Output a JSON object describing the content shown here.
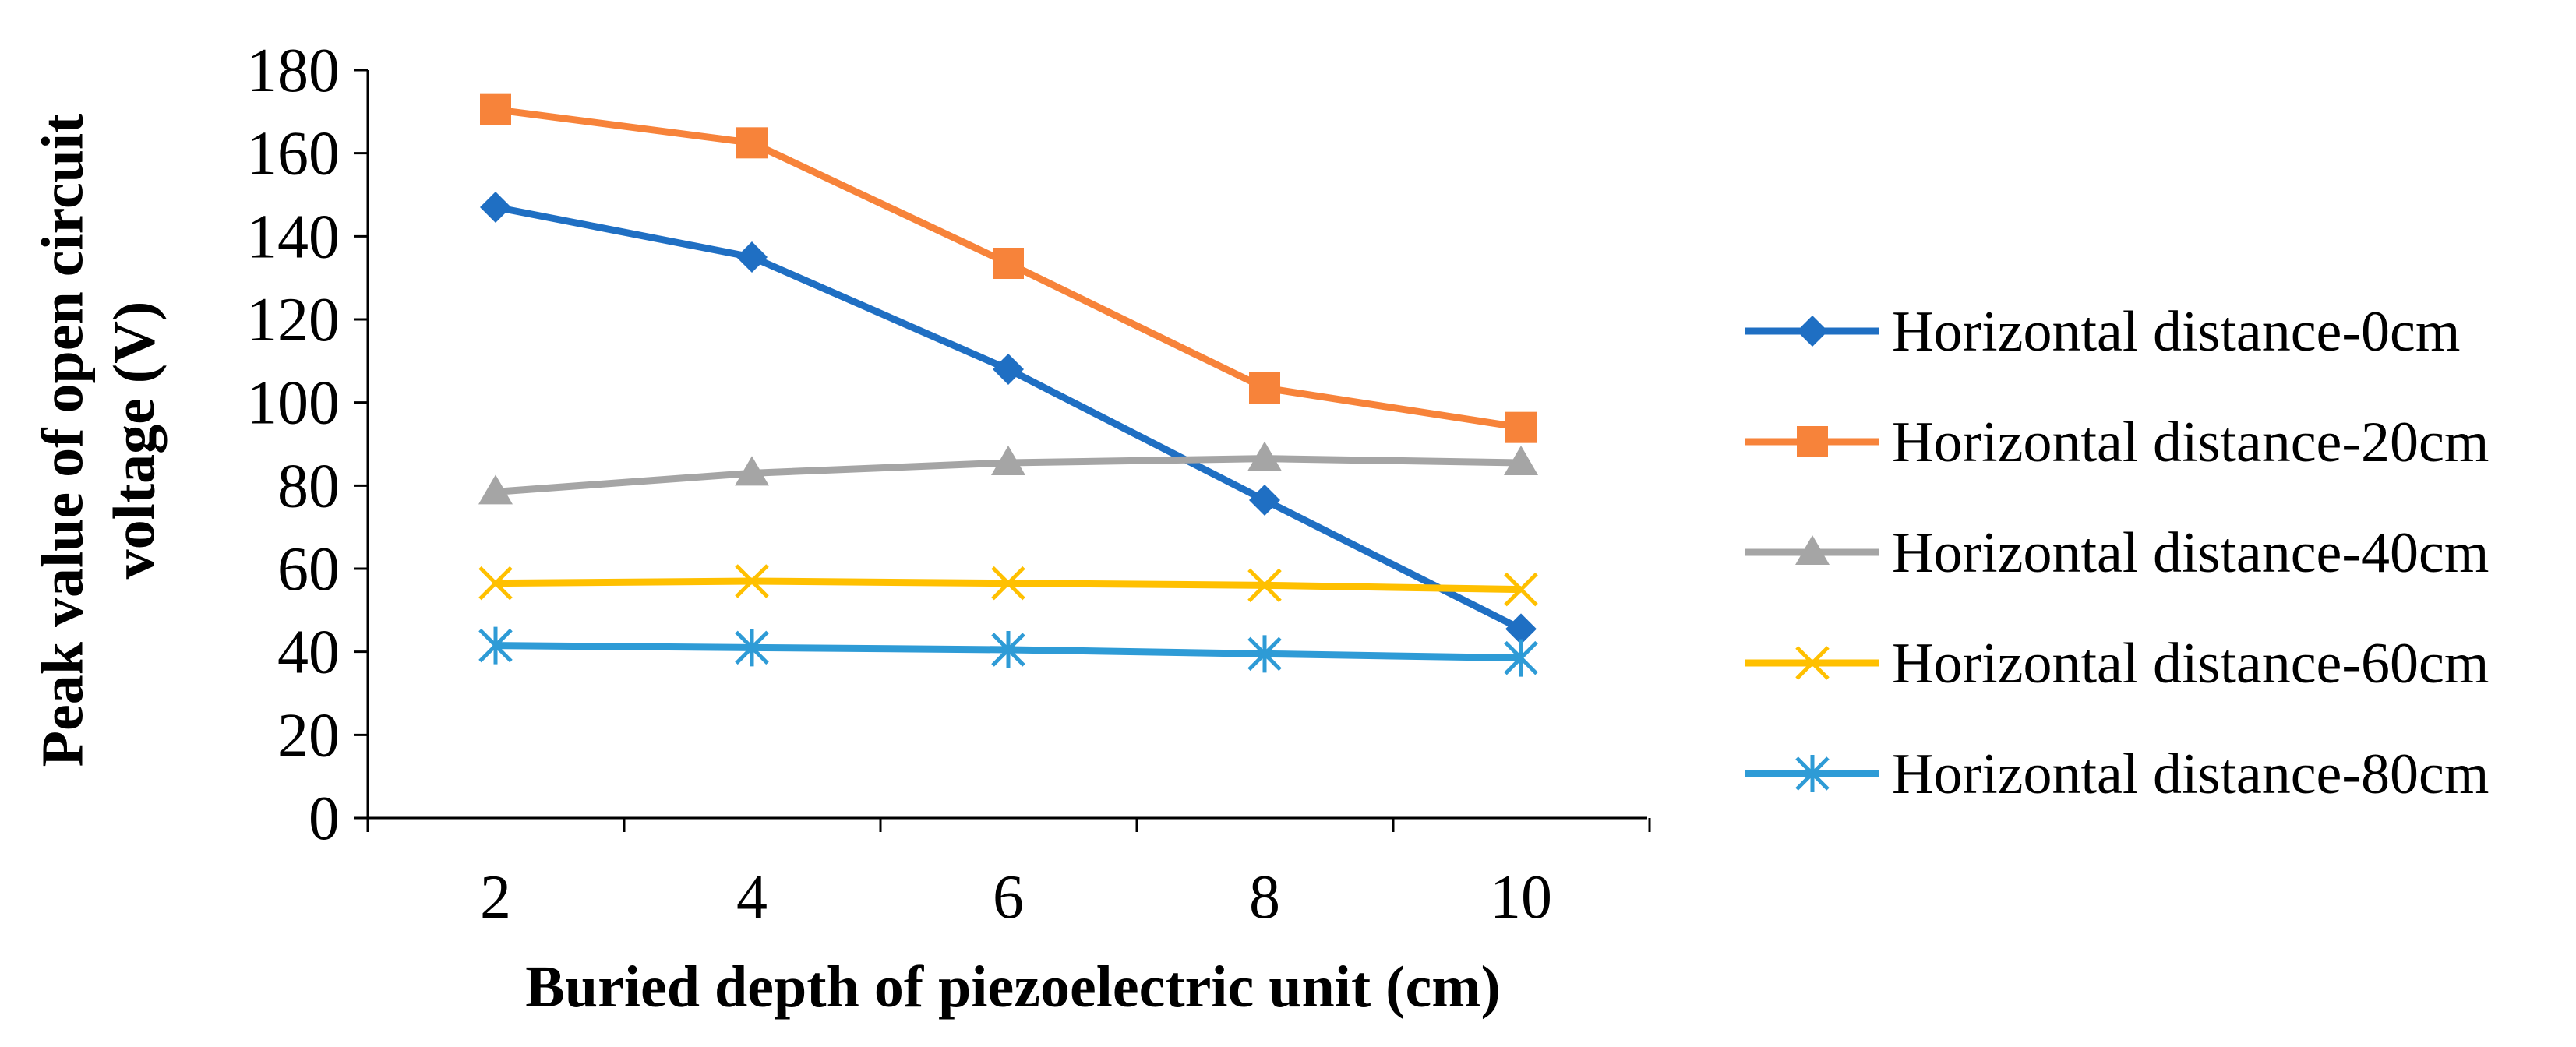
{
  "chart_data": {
    "type": "line",
    "title": "",
    "xlabel": "Buried depth of piezoelectric unit (cm)",
    "ylabel_lines": [
      "Peak value of open circuit",
      "voltage (V)"
    ],
    "x": [
      2,
      4,
      6,
      8,
      10
    ],
    "x_tick_labels": [
      "2",
      "4",
      "6",
      "8",
      "10"
    ],
    "ylim": [
      0,
      180
    ],
    "y_ticks": [
      0,
      20,
      40,
      60,
      80,
      100,
      120,
      140,
      160,
      180
    ],
    "y_tick_labels": [
      "0",
      "20",
      "40",
      "60",
      "80",
      "100",
      "120",
      "140",
      "160",
      "180"
    ],
    "grid": false,
    "legend_position": "right",
    "series": [
      {
        "name": "Horizontal distance-0cm",
        "values": [
          147,
          135,
          108,
          76.5,
          45.5
        ],
        "color": "#1F6FC3",
        "marker": "diamond"
      },
      {
        "name": "Horizontal distance-20cm",
        "values": [
          170.5,
          162.5,
          133.5,
          103.5,
          94
        ],
        "color": "#F7833A",
        "marker": "square"
      },
      {
        "name": "Horizontal distance-40cm",
        "values": [
          78.5,
          83,
          85.5,
          86.5,
          85.5
        ],
        "color": "#A5A5A5",
        "marker": "triangle"
      },
      {
        "name": "Horizontal distance-60cm",
        "values": [
          56.5,
          57,
          56.5,
          56,
          55
        ],
        "color": "#FFC000",
        "marker": "x"
      },
      {
        "name": "Horizontal distance-80cm",
        "values": [
          41.5,
          41,
          40.5,
          39.5,
          38.5
        ],
        "color": "#2E9BD6",
        "marker": "asterisk"
      }
    ]
  }
}
